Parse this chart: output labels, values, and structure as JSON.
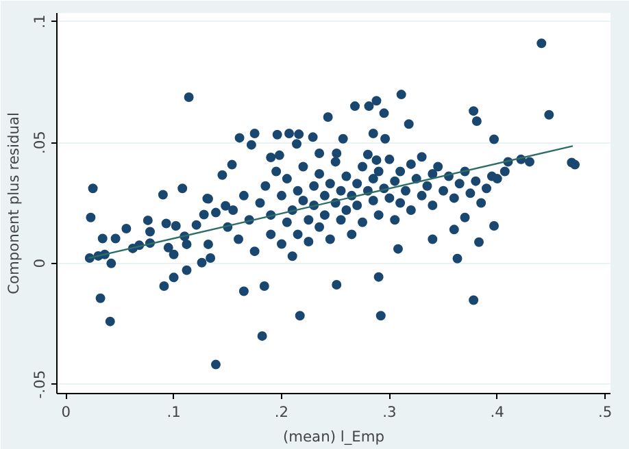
{
  "chart_data": {
    "type": "scatter",
    "xlabel": "(mean) l_Emp",
    "ylabel": "Component plus residual",
    "xlim": [
      -0.0084,
      0.505
    ],
    "ylim": [
      -0.0538,
      0.1035
    ],
    "xticks": [
      {
        "value": 0,
        "label": "0"
      },
      {
        "value": 0.1,
        "label": ".1"
      },
      {
        "value": 0.2,
        "label": ".2"
      },
      {
        "value": 0.3,
        "label": ".3"
      },
      {
        "value": 0.4,
        "label": ".4"
      },
      {
        "value": 0.5,
        "label": ".5"
      }
    ],
    "yticks": [
      {
        "value": -0.05,
        "label": "-.05"
      },
      {
        "value": 0,
        "label": "0"
      },
      {
        "value": 0.05,
        "label": ".05"
      },
      {
        "value": 0.1,
        "label": ".1"
      }
    ],
    "grid": "y",
    "series": [
      {
        "marker": "circle",
        "color": "#1a476f",
        "x": [
          0.441,
          0.448,
          0.378,
          0.381,
          0.397,
          0.469,
          0.472,
          0.397,
          0.383,
          0.363,
          0.378,
          0.165,
          0.184,
          0.217,
          0.292,
          0.182,
          0.139,
          0.251,
          0.29,
          0.308,
          0.023,
          0.032,
          0.041,
          0.022,
          0.042,
          0.1,
          0.091,
          0.112,
          0.126,
          0.114,
          0.025,
          0.09,
          0.108,
          0.131,
          0.311,
          0.288,
          0.281,
          0.268,
          0.295,
          0.243,
          0.318,
          0.161,
          0.175,
          0.196,
          0.207,
          0.216,
          0.229,
          0.257,
          0.285,
          0.296,
          0.172,
          0.214,
          0.154,
          0.145,
          0.19,
          0.198,
          0.235,
          0.251,
          0.288,
          0.132,
          0.148,
          0.139,
          0.034,
          0.046,
          0.056,
          0.076,
          0.078,
          0.093,
          0.102,
          0.095,
          0.1,
          0.062,
          0.068,
          0.078,
          0.036,
          0.03,
          0.11,
          0.112,
          0.121,
          0.128,
          0.132,
          0.134,
          0.15,
          0.155,
          0.16,
          0.165,
          0.17,
          0.175,
          0.18,
          0.185,
          0.19,
          0.19,
          0.195,
          0.2,
          0.2,
          0.205,
          0.205,
          0.21,
          0.21,
          0.215,
          0.215,
          0.22,
          0.22,
          0.225,
          0.225,
          0.23,
          0.23,
          0.235,
          0.235,
          0.24,
          0.24,
          0.245,
          0.245,
          0.25,
          0.25,
          0.255,
          0.255,
          0.26,
          0.26,
          0.265,
          0.265,
          0.27,
          0.27,
          0.275,
          0.275,
          0.28,
          0.28,
          0.285,
          0.285,
          0.29,
          0.29,
          0.295,
          0.3,
          0.3,
          0.305,
          0.305,
          0.31,
          0.31,
          0.315,
          0.32,
          0.32,
          0.325,
          0.33,
          0.33,
          0.335,
          0.34,
          0.34,
          0.345,
          0.35,
          0.355,
          0.36,
          0.365,
          0.37,
          0.375,
          0.38,
          0.385,
          0.39,
          0.395,
          0.4,
          0.41,
          0.422,
          0.407,
          0.43,
          0.36,
          0.34,
          0.37
        ],
        "values": [
          0.091,
          0.0614,
          0.063,
          0.0588,
          0.0513,
          0.0417,
          0.0408,
          0.0155,
          0.0088,
          0.002,
          -0.0152,
          -0.0115,
          -0.0094,
          -0.0216,
          -0.0216,
          -0.03,
          -0.0418,
          -0.0088,
          -0.0056,
          0.006,
          0.019,
          -0.0144,
          -0.024,
          0.0022,
          0.0,
          -0.0058,
          -0.0094,
          -0.0028,
          0.0003,
          0.0687,
          0.031,
          0.0284,
          0.031,
          0.0268,
          0.0698,
          0.0672,
          0.065,
          0.065,
          0.0621,
          0.0605,
          0.0576,
          0.0519,
          0.0537,
          0.0532,
          0.0537,
          0.0534,
          0.0522,
          0.0515,
          0.0537,
          0.0515,
          0.049,
          0.0494,
          0.0408,
          0.0365,
          0.0438,
          0.0447,
          0.0455,
          0.0455,
          0.0427,
          0.0267,
          0.0238,
          0.021,
          0.0103,
          0.0103,
          0.0144,
          0.0178,
          0.0131,
          0.0165,
          0.0155,
          0.0065,
          0.0037,
          0.0062,
          0.0075,
          0.0084,
          0.0037,
          0.0031,
          0.0112,
          0.0079,
          0.0159,
          0.0202,
          0.0079,
          0.0022,
          0.015,
          0.022,
          0.01,
          0.028,
          0.018,
          0.005,
          0.025,
          0.032,
          0.012,
          0.02,
          0.038,
          0.008,
          0.028,
          0.017,
          0.035,
          0.022,
          0.003,
          0.03,
          0.012,
          0.026,
          0.04,
          0.018,
          0.009,
          0.032,
          0.024,
          0.015,
          0.037,
          0.028,
          0.02,
          0.01,
          0.033,
          0.025,
          0.042,
          0.018,
          0.03,
          0.022,
          0.036,
          0.028,
          0.012,
          0.033,
          0.024,
          0.04,
          0.017,
          0.03,
          0.045,
          0.026,
          0.035,
          0.02,
          0.038,
          0.031,
          0.027,
          0.043,
          0.034,
          0.018,
          0.038,
          0.025,
          0.03,
          0.041,
          0.022,
          0.035,
          0.028,
          0.044,
          0.032,
          0.037,
          0.024,
          0.04,
          0.03,
          0.036,
          0.027,
          0.033,
          0.038,
          0.029,
          0.034,
          0.025,
          0.031,
          0.036,
          0.035,
          0.042,
          0.043,
          0.038,
          0.042,
          0.014,
          0.01,
          0.019
        ]
      },
      {
        "type": "line",
        "color": "#2d6d66",
        "x": [
          0.021,
          0.47
        ],
        "values": [
          0.0022,
          0.0485
        ]
      }
    ]
  }
}
